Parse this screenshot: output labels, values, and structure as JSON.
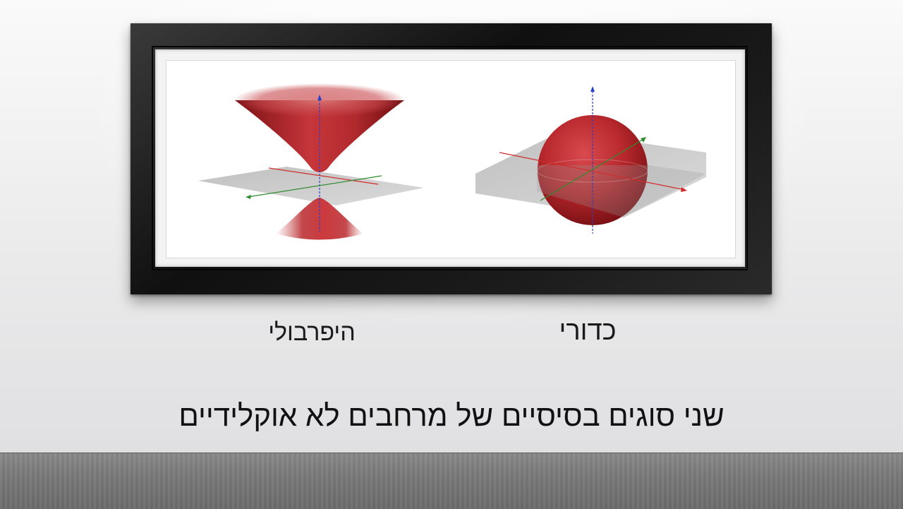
{
  "slide": {
    "title": "שני סוגים בסיסיים של מרחבים לא אוקלידיים",
    "labels": {
      "hyperbolic": "היפרבולי",
      "spherical": "כדורי"
    }
  },
  "colors": {
    "surface": "#b8282c",
    "plane": "#9a9a9a",
    "axis_x": "#d22b2b",
    "axis_y": "#2e8b2e",
    "axis_z": "#2a3fc9",
    "frame": "#111111",
    "floor": "#777777"
  }
}
